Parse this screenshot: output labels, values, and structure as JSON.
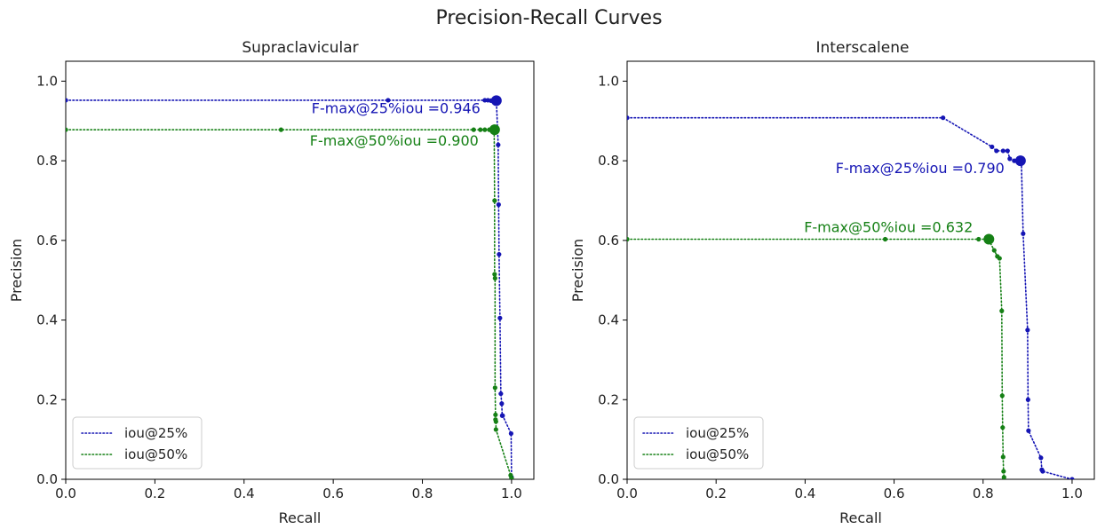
{
  "figure": {
    "title": "Precision-Recall Curves"
  },
  "colors": {
    "iou25": "#1515b4",
    "iou50": "#158015"
  },
  "chart_data": [
    {
      "type": "line",
      "title": "Supraclavicular",
      "xlabel": "Recall",
      "ylabel": "Precision",
      "xlim": [
        0.0,
        1.05
      ],
      "ylim": [
        0.0,
        1.05
      ],
      "xticks": [
        "0.0",
        "0.2",
        "0.4",
        "0.6",
        "0.8",
        "1.0"
      ],
      "yticks": [
        "0.0",
        "0.2",
        "0.4",
        "0.6",
        "0.8",
        "1.0"
      ],
      "grid": false,
      "legend": "lower-left",
      "series": [
        {
          "name": "iou@25%",
          "color": "#1515b4",
          "line": "dotted",
          "x": [
            0.0,
            0.723,
            0.94,
            0.947,
            0.954,
            0.96,
            0.966,
            0.97,
            0.971,
            0.972,
            0.974,
            0.976,
            0.978,
            0.979,
            0.98,
            0.999,
            1.0
          ],
          "y": [
            0.952,
            0.952,
            0.952,
            0.952,
            0.951,
            0.951,
            0.951,
            0.84,
            0.69,
            0.565,
            0.405,
            0.215,
            0.19,
            0.16,
            0.16,
            0.115,
            0.005
          ],
          "fmax": {
            "x": 0.966,
            "y": 0.951,
            "label": "F-max@25%iou =0.946"
          }
        },
        {
          "name": "iou@50%",
          "color": "#158015",
          "line": "dotted",
          "x": [
            0.0,
            0.483,
            0.915,
            0.93,
            0.94,
            0.95,
            0.957,
            0.961,
            0.962,
            0.962,
            0.963,
            0.963,
            0.964,
            0.964,
            0.965,
            0.965,
            0.998,
            1.0
          ],
          "y": [
            0.878,
            0.878,
            0.878,
            0.878,
            0.878,
            0.878,
            0.878,
            0.878,
            0.7,
            0.515,
            0.505,
            0.23,
            0.162,
            0.15,
            0.145,
            0.125,
            0.01,
            0.003
          ],
          "fmax": {
            "x": 0.962,
            "y": 0.878,
            "label": "F-max@50%iou =0.900"
          }
        }
      ]
    },
    {
      "type": "line",
      "title": "Interscalene",
      "xlabel": "Recall",
      "ylabel": "Precision",
      "xlim": [
        0.0,
        1.05
      ],
      "ylim": [
        0.0,
        1.05
      ],
      "xticks": [
        "0.0",
        "0.2",
        "0.4",
        "0.6",
        "0.8",
        "1.0"
      ],
      "yticks": [
        "0.0",
        "0.2",
        "0.4",
        "0.6",
        "0.8",
        "1.0"
      ],
      "grid": false,
      "legend": "lower-left",
      "series": [
        {
          "name": "iou@25%",
          "color": "#1515b4",
          "line": "dotted",
          "x": [
            0.0,
            0.71,
            0.82,
            0.83,
            0.845,
            0.855,
            0.86,
            0.87,
            0.88,
            0.886,
            0.89,
            0.9,
            0.901,
            0.902,
            0.93,
            0.932,
            0.934,
            1.0
          ],
          "y": [
            0.908,
            0.908,
            0.835,
            0.825,
            0.825,
            0.825,
            0.805,
            0.8,
            0.8,
            0.8,
            0.617,
            0.375,
            0.2,
            0.122,
            0.054,
            0.024,
            0.02,
            0.0
          ],
          "fmax": {
            "x": 0.884,
            "y": 0.8,
            "label": "F-max@25%iou =0.790"
          }
        },
        {
          "name": "iou@50%",
          "color": "#158015",
          "line": "dotted",
          "x": [
            0.0,
            0.58,
            0.79,
            0.812,
            0.825,
            0.832,
            0.837,
            0.842,
            0.843,
            0.844,
            0.845,
            0.846,
            0.847
          ],
          "y": [
            0.603,
            0.603,
            0.603,
            0.603,
            0.575,
            0.56,
            0.555,
            0.423,
            0.21,
            0.13,
            0.056,
            0.02,
            0.005
          ],
          "fmax": {
            "x": 0.813,
            "y": 0.603,
            "label": "F-max@50%iou =0.632"
          }
        }
      ]
    }
  ]
}
